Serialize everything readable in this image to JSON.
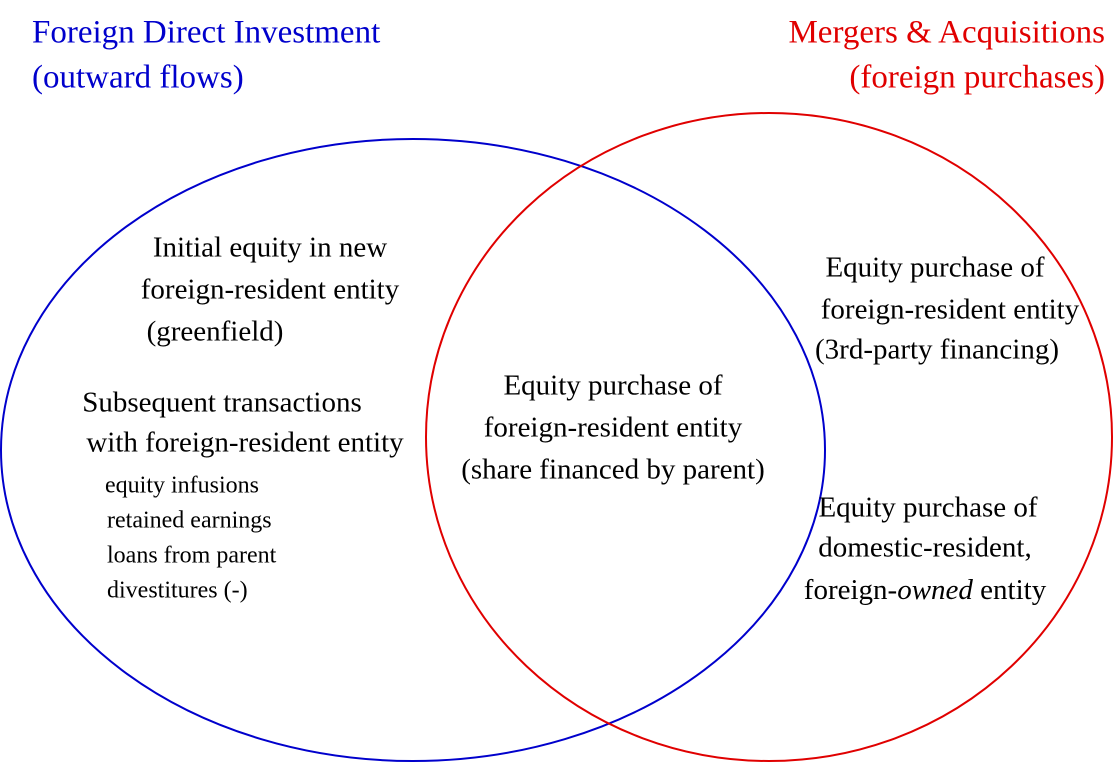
{
  "sets": [
    {
      "label": [
        "Foreign Direct Investment",
        "(outward flows)"
      ]
    },
    {
      "label": [
        "Mergers & Acquisitions",
        "(foreign purchases)"
      ]
    }
  ],
  "fdi_only": [
    {
      "lines": [
        "Initial equity in new",
        "foreign-resident entity",
        "(greenfield)"
      ]
    },
    {
      "lines": [
        "Subsequent transactions",
        "with foreign-resident entity"
      ],
      "items": [
        "equity infusions",
        "retained earnings",
        "loans from parent",
        "divestitures (-)"
      ]
    }
  ],
  "overlap": {
    "lines": [
      "Equity purchase of",
      "foreign-resident entity",
      "(share financed by parent)"
    ]
  },
  "ma_only": [
    {
      "lines": [
        "Equity purchase of",
        "foreign-resident entity",
        "(3rd-party financing)"
      ]
    },
    {
      "lines": [
        "Equity purchase of",
        "domestic-resident,"
      ],
      "last_line": [
        "foreign-",
        "owned",
        " entity"
      ]
    }
  ]
}
